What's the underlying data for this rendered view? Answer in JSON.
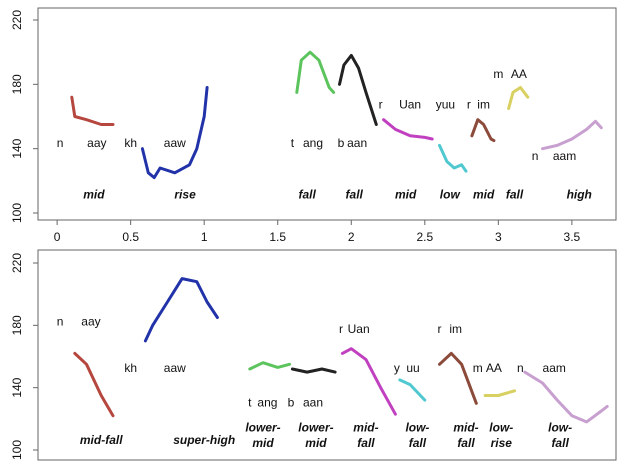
{
  "chart_data": [
    {
      "type": "line",
      "xlim": [
        -0.13,
        3.8
      ],
      "ylim": [
        100,
        220
      ],
      "yticks": [
        100,
        140,
        180,
        220
      ],
      "xticks": [
        0,
        0.5,
        1,
        1.5,
        2,
        2.5,
        3,
        3.5
      ],
      "series": [
        {
          "color": "#b5473f",
          "x": [
            0.1,
            0.12,
            0.2,
            0.3,
            0.38
          ],
          "values": [
            172,
            160,
            158,
            155,
            155
          ]
        },
        {
          "color": "#2233aa",
          "x": [
            0.58,
            0.62,
            0.66,
            0.7,
            0.8,
            0.9,
            0.95,
            1.0,
            1.02
          ],
          "values": [
            140,
            125,
            122,
            128,
            125,
            130,
            140,
            160,
            178
          ]
        },
        {
          "color": "#5cc45c",
          "x": [
            1.63,
            1.66,
            1.72,
            1.78,
            1.85,
            1.88
          ],
          "values": [
            175,
            195,
            200,
            195,
            178,
            175
          ]
        },
        {
          "color": "#222222",
          "x": [
            1.92,
            1.95,
            2.0,
            2.05,
            2.1,
            2.17
          ],
          "values": [
            180,
            192,
            198,
            190,
            175,
            155
          ]
        },
        {
          "color": "#c040c0",
          "x": [
            2.22,
            2.3,
            2.4,
            2.5,
            2.55
          ],
          "values": [
            158,
            152,
            148,
            147,
            146
          ]
        },
        {
          "color": "#50c8d0",
          "x": [
            2.6,
            2.65,
            2.7,
            2.75,
            2.78
          ],
          "values": [
            142,
            132,
            128,
            130,
            126
          ]
        },
        {
          "color": "#8b4a3a",
          "x": [
            2.82,
            2.86,
            2.9,
            2.95,
            2.97
          ],
          "values": [
            148,
            158,
            155,
            146,
            145
          ]
        },
        {
          "color": "#d8d060",
          "x": [
            3.07,
            3.1,
            3.15,
            3.2
          ],
          "values": [
            165,
            175,
            178,
            172
          ]
        },
        {
          "color": "#c8a0d0",
          "x": [
            3.3,
            3.4,
            3.5,
            3.6,
            3.66,
            3.7
          ],
          "values": [
            140,
            142,
            146,
            152,
            157,
            153
          ]
        }
      ],
      "annotations": [
        {
          "text": "n",
          "x": 0.02,
          "y": 143
        },
        {
          "text": "aay",
          "x": 0.27,
          "y": 143
        },
        {
          "text": "kh",
          "x": 0.5,
          "y": 143
        },
        {
          "text": "aaw",
          "x": 0.8,
          "y": 143
        },
        {
          "text": "t",
          "x": 1.6,
          "y": 143
        },
        {
          "text": "ang",
          "x": 1.74,
          "y": 143
        },
        {
          "text": "b",
          "x": 1.93,
          "y": 143
        },
        {
          "text": "aan",
          "x": 2.04,
          "y": 143
        },
        {
          "text": "r",
          "x": 2.2,
          "y": 167
        },
        {
          "text": "Uan",
          "x": 2.4,
          "y": 167
        },
        {
          "text": "yuu",
          "x": 2.64,
          "y": 167
        },
        {
          "text": "r",
          "x": 2.8,
          "y": 167
        },
        {
          "text": "im",
          "x": 2.9,
          "y": 167
        },
        {
          "text": "m",
          "x": 3.0,
          "y": 186
        },
        {
          "text": "AA",
          "x": 3.14,
          "y": 186
        },
        {
          "text": "n",
          "x": 3.25,
          "y": 135
        },
        {
          "text": "aam",
          "x": 3.45,
          "y": 135
        }
      ],
      "tone_labels": [
        {
          "text": "mid",
          "x": 0.25,
          "y": 111
        },
        {
          "text": "rise",
          "x": 0.87,
          "y": 111
        },
        {
          "text": "fall",
          "x": 1.7,
          "y": 111
        },
        {
          "text": "fall",
          "x": 2.02,
          "y": 111
        },
        {
          "text": "mid",
          "x": 2.37,
          "y": 111
        },
        {
          "text": "low",
          "x": 2.67,
          "y": 111
        },
        {
          "text": "mid",
          "x": 2.9,
          "y": 111
        },
        {
          "text": "fall",
          "x": 3.11,
          "y": 111
        },
        {
          "text": "high",
          "x": 3.55,
          "y": 111
        }
      ]
    },
    {
      "type": "line",
      "xlim": [
        -0.13,
        3.8
      ],
      "ylim": [
        100,
        220
      ],
      "yticks": [
        100,
        140,
        180,
        220
      ],
      "series": [
        {
          "color": "#b5473f",
          "x": [
            0.12,
            0.2,
            0.3,
            0.38
          ],
          "values": [
            162,
            155,
            135,
            122
          ]
        },
        {
          "color": "#2233aa",
          "x": [
            0.6,
            0.65,
            0.75,
            0.85,
            0.95,
            1.02,
            1.09
          ],
          "values": [
            170,
            180,
            195,
            210,
            208,
            195,
            185
          ]
        },
        {
          "color": "#5cc45c",
          "x": [
            1.31,
            1.4,
            1.5,
            1.58
          ],
          "values": [
            152,
            156,
            153,
            155
          ]
        },
        {
          "color": "#222222",
          "x": [
            1.6,
            1.7,
            1.8,
            1.89
          ],
          "values": [
            152,
            150,
            152,
            150
          ]
        },
        {
          "color": "#c040c0",
          "x": [
            1.94,
            2.0,
            2.1,
            2.2,
            2.3
          ],
          "values": [
            162,
            165,
            158,
            140,
            123
          ]
        },
        {
          "color": "#50c8d0",
          "x": [
            2.33,
            2.4,
            2.5
          ],
          "values": [
            145,
            142,
            132
          ]
        },
        {
          "color": "#8b4a3a",
          "x": [
            2.6,
            2.68,
            2.75,
            2.85
          ],
          "values": [
            155,
            162,
            155,
            130
          ]
        },
        {
          "color": "#d8d060",
          "x": [
            2.91,
            3.0,
            3.11
          ],
          "values": [
            135,
            135,
            138
          ]
        },
        {
          "color": "#c8a0d0",
          "x": [
            3.18,
            3.3,
            3.4,
            3.5,
            3.6,
            3.7,
            3.74
          ],
          "values": [
            150,
            143,
            132,
            122,
            118,
            125,
            128
          ]
        }
      ],
      "annotations": [
        {
          "text": "n",
          "x": 0.02,
          "y": 182
        },
        {
          "text": "aay",
          "x": 0.23,
          "y": 182
        },
        {
          "text": "kh",
          "x": 0.5,
          "y": 152
        },
        {
          "text": "aaw",
          "x": 0.8,
          "y": 152
        },
        {
          "text": "t",
          "x": 1.31,
          "y": 130
        },
        {
          "text": "ang",
          "x": 1.43,
          "y": 130
        },
        {
          "text": "b",
          "x": 1.59,
          "y": 130
        },
        {
          "text": "aan",
          "x": 1.74,
          "y": 130
        },
        {
          "text": "r",
          "x": 1.93,
          "y": 177
        },
        {
          "text": "Uan",
          "x": 2.05,
          "y": 177
        },
        {
          "text": "y",
          "x": 2.31,
          "y": 152
        },
        {
          "text": "uu",
          "x": 2.42,
          "y": 152
        },
        {
          "text": "r",
          "x": 2.6,
          "y": 177
        },
        {
          "text": "im",
          "x": 2.71,
          "y": 177
        },
        {
          "text": "m",
          "x": 2.86,
          "y": 152
        },
        {
          "text": "AA",
          "x": 2.97,
          "y": 152
        },
        {
          "text": "n",
          "x": 3.15,
          "y": 152
        },
        {
          "text": "aam",
          "x": 3.38,
          "y": 152
        }
      ],
      "tone_labels": [
        {
          "text": "mid-fall",
          "x": 0.3,
          "y": 106
        },
        {
          "text": "super-high",
          "x": 1.0,
          "y": 106
        },
        {
          "text": "lower-",
          "x": 1.4,
          "y": 114
        },
        {
          "text": "mid",
          "x": 1.4,
          "y": 104
        },
        {
          "text": "lower-",
          "x": 1.76,
          "y": 114
        },
        {
          "text": "mid",
          "x": 1.76,
          "y": 104
        },
        {
          "text": "mid-",
          "x": 2.1,
          "y": 114
        },
        {
          "text": "fall",
          "x": 2.1,
          "y": 104
        },
        {
          "text": "low-",
          "x": 2.45,
          "y": 114
        },
        {
          "text": "fall",
          "x": 2.45,
          "y": 104
        },
        {
          "text": "mid-",
          "x": 2.78,
          "y": 114
        },
        {
          "text": "fall",
          "x": 2.78,
          "y": 104
        },
        {
          "text": "low-",
          "x": 3.02,
          "y": 114
        },
        {
          "text": "rise",
          "x": 3.02,
          "y": 104
        },
        {
          "text": "low-",
          "x": 3.42,
          "y": 114
        },
        {
          "text": "fall",
          "x": 3.42,
          "y": 104
        }
      ]
    }
  ]
}
